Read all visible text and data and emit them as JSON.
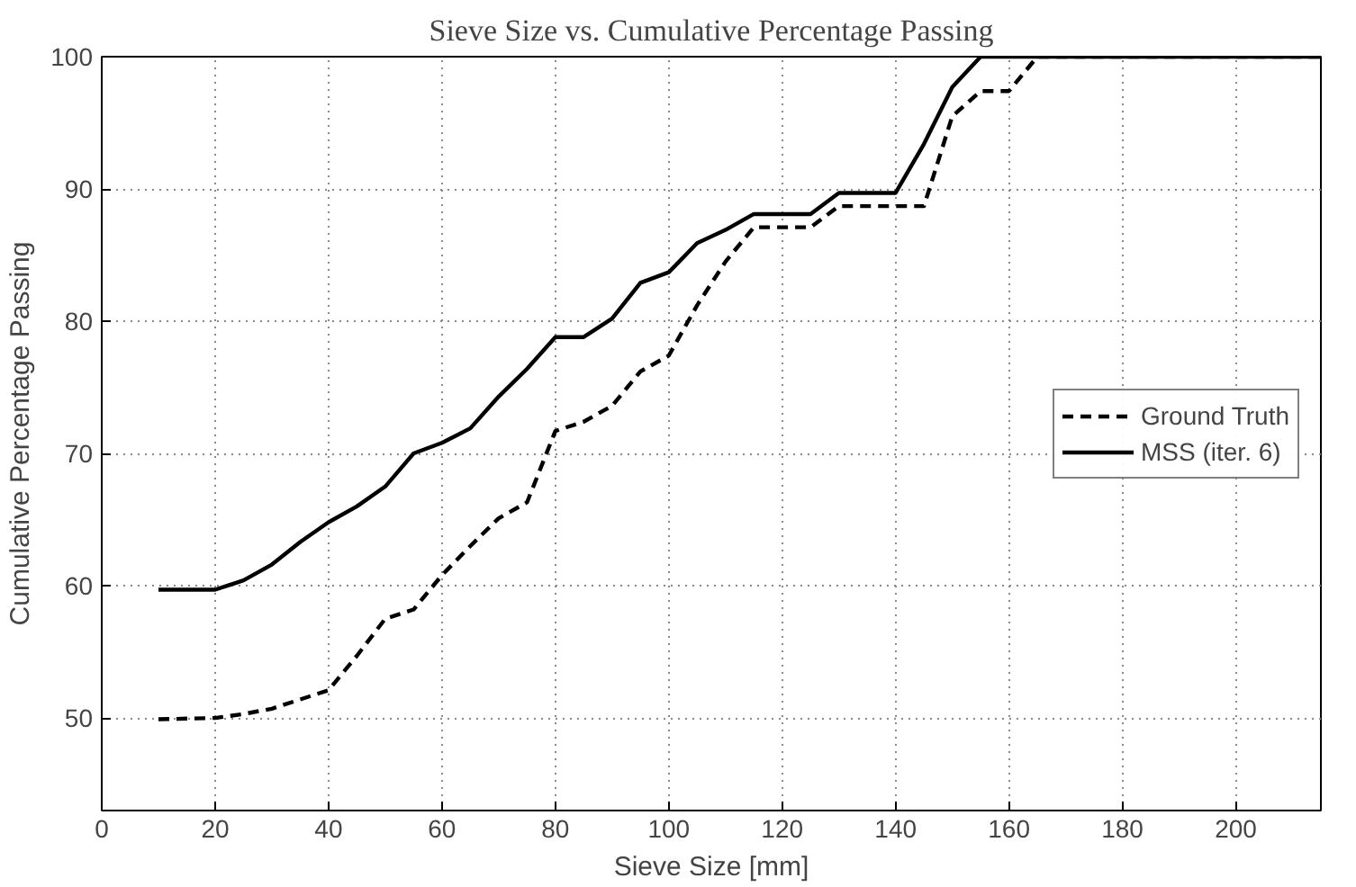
{
  "chart_data": {
    "type": "line",
    "title": "Sieve Size vs. Cumulative Percentage Passing",
    "xlabel": "Sieve Size [mm]",
    "ylabel": "Cumulative Percentage Passing",
    "xlim": [
      0,
      215
    ],
    "ylim": [
      43,
      100
    ],
    "xticks": [
      0,
      20,
      40,
      60,
      80,
      100,
      120,
      140,
      160,
      180,
      200
    ],
    "yticks": [
      50,
      60,
      70,
      80,
      90,
      100
    ],
    "grid": true,
    "legend": "right",
    "marker": "none",
    "series": [
      {
        "name": "Ground Truth",
        "color": "#000000",
        "line_style": "dashed",
        "x": [
          10,
          20,
          25,
          30,
          35,
          40,
          45,
          50,
          55,
          60,
          65,
          70,
          75,
          80,
          85,
          90,
          95,
          100,
          105,
          110,
          115,
          125,
          130,
          145,
          150,
          155,
          160,
          165,
          215
        ],
        "values": [
          49.9,
          50.0,
          50.3,
          50.7,
          51.4,
          52.1,
          54.7,
          57.5,
          58.2,
          60.8,
          63.0,
          65.1,
          66.3,
          71.7,
          72.4,
          73.6,
          76.2,
          77.4,
          81.2,
          84.5,
          87.1,
          87.1,
          88.7,
          88.7,
          95.5,
          97.4,
          97.4,
          100,
          100
        ]
      },
      {
        "name": "MSS (iter. 6)",
        "color": "#000000",
        "line_style": "solid",
        "x": [
          10,
          20,
          25,
          30,
          35,
          40,
          45,
          50,
          55,
          60,
          65,
          70,
          75,
          80,
          85,
          90,
          95,
          100,
          105,
          110,
          115,
          125,
          130,
          140,
          145,
          150,
          155,
          215
        ],
        "values": [
          59.7,
          59.7,
          60.4,
          61.6,
          63.3,
          64.8,
          66.0,
          67.5,
          70.0,
          70.8,
          71.9,
          74.3,
          76.4,
          78.8,
          78.8,
          80.2,
          82.9,
          83.7,
          85.9,
          86.9,
          88.1,
          88.1,
          89.7,
          89.7,
          93.4,
          97.7,
          100,
          100
        ]
      }
    ]
  }
}
